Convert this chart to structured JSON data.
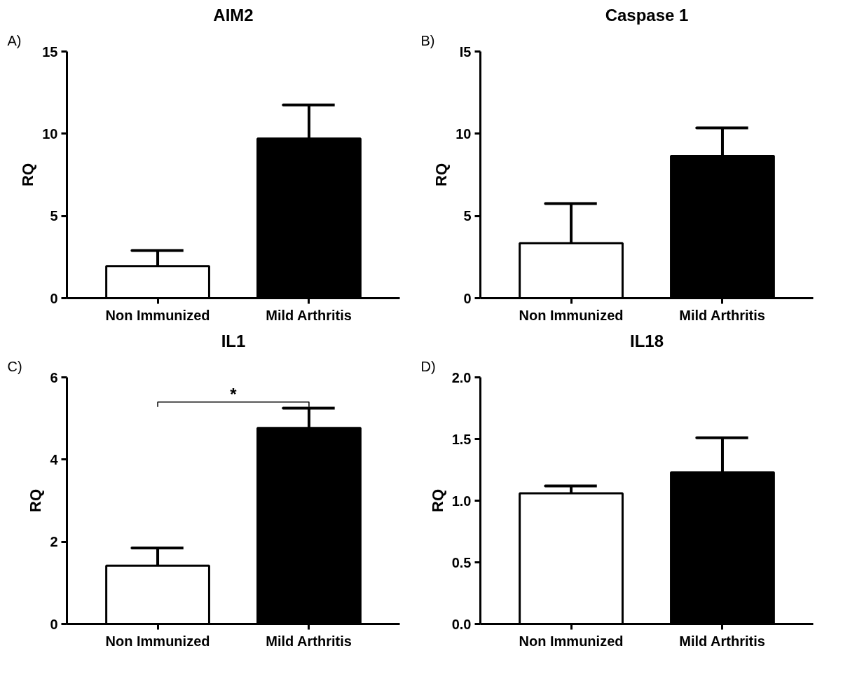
{
  "chart_data": [
    {
      "type": "bar",
      "title": "AIM2",
      "ylabel": "RQ",
      "categories": [
        "Non Immunized",
        "Mild Arthritis"
      ],
      "values": [
        1.95,
        9.7
      ],
      "colors": [
        "#ffffff",
        "#000000"
      ],
      "errors": [
        [
          1.95,
          2.9
        ],
        [
          9.7,
          11.75
        ]
      ],
      "ylim": [
        0,
        15
      ],
      "yticks": [
        0,
        5,
        10,
        15
      ],
      "grid": false,
      "annotations": [
        "A)"
      ]
    },
    {
      "type": "bar",
      "title": "Caspase 1",
      "ylabel": "RQ",
      "categories": [
        "Non Immunized",
        "Mild Arthritis"
      ],
      "values": [
        3.35,
        8.65
      ],
      "colors": [
        "#ffffff",
        "#000000"
      ],
      "errors": [
        [
          3.35,
          5.75
        ],
        [
          8.65,
          10.35
        ]
      ],
      "ylim": [
        0,
        15
      ],
      "yticks": [
        0,
        5,
        10,
        {
          "value": 15,
          "label": "I5"
        }
      ],
      "grid": false,
      "annotations": [
        "B)"
      ]
    },
    {
      "type": "bar",
      "title": "IL1",
      "ylabel": "RQ",
      "categories": [
        "Non Immunized",
        "Mild Arthritis"
      ],
      "values": [
        1.42,
        4.77
      ],
      "colors": [
        "#ffffff",
        "#000000"
      ],
      "errors": [
        [
          1.42,
          1.85
        ],
        [
          4.77,
          5.25
        ]
      ],
      "ylim": [
        0,
        6
      ],
      "yticks": [
        0,
        2,
        4,
        6
      ],
      "grid": false,
      "annotations": [
        "C)",
        "*"
      ]
    },
    {
      "type": "bar",
      "title": "IL18",
      "ylabel": "RQ",
      "categories": [
        "Non Immunized",
        "Mild Arthritis"
      ],
      "values": [
        1.06,
        1.23
      ],
      "colors": [
        "#ffffff",
        "#000000"
      ],
      "errors": [
        [
          1.06,
          1.12
        ],
        [
          1.23,
          1.51
        ]
      ],
      "ylim": [
        0,
        2.0
      ],
      "yticks": [
        {
          "value": 0,
          "label": "0.0"
        },
        0.5,
        {
          "value": 1,
          "label": "1.0"
        },
        1.5,
        {
          "value": 2,
          "label": "2.0"
        }
      ],
      "grid": false,
      "annotations": [
        "D)"
      ]
    }
  ]
}
